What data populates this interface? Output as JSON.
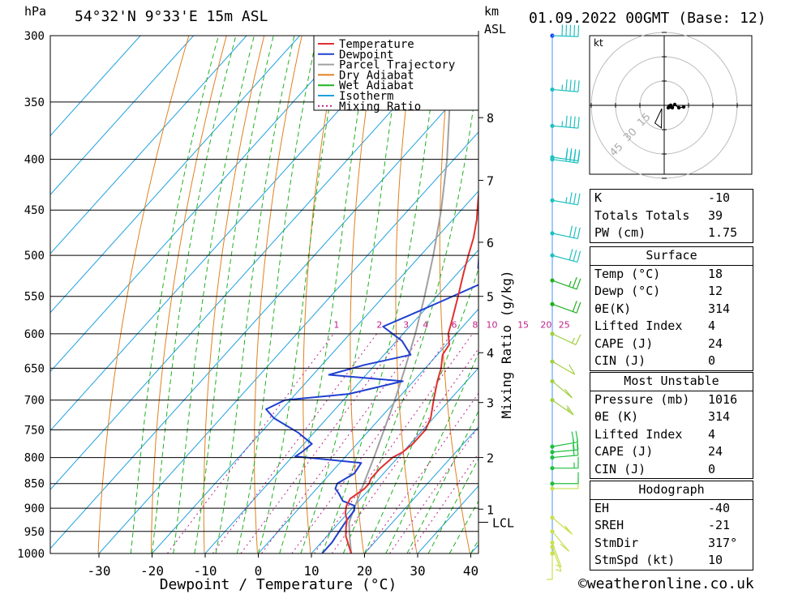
{
  "header": {
    "p_unit": "hPa",
    "location": "54°32'N  9°33'E  15m  ASL",
    "km_label": "km",
    "asl_label": "ASL",
    "datetime": "01.09.2022  00GMT  (Base: 12)"
  },
  "chart_data": {
    "type": "line",
    "xlabel": "Dewpoint / Temperature (°C)",
    "ylabel": "hPa",
    "right_axis_label": "Mixing Ratio (g/kg)",
    "x_ticks": [
      -30,
      -20,
      -10,
      0,
      10,
      20,
      30,
      40
    ],
    "pressure_levels": [
      300,
      350,
      400,
      450,
      500,
      550,
      600,
      650,
      700,
      750,
      800,
      850,
      900,
      950,
      1000
    ],
    "km_ticks": [
      {
        "label": "8",
        "p": 363
      },
      {
        "label": "7",
        "p": 420
      },
      {
        "label": "6",
        "p": 485
      },
      {
        "label": "5",
        "p": 550
      },
      {
        "label": "4",
        "p": 627
      },
      {
        "label": "3",
        "p": 704
      },
      {
        "label": "2",
        "p": 800
      },
      {
        "label": "1",
        "p": 902
      }
    ],
    "lcl": {
      "label": "LCL",
      "p": 930
    },
    "mixing_ratio_labels": [
      "1",
      "2",
      "3",
      "4",
      "6",
      "8",
      "10",
      "15",
      "20",
      "25"
    ],
    "legend": [
      "Temperature",
      "Dewpoint",
      "Parcel Trajectory",
      "Dry Adiabat",
      "Wet Adiabat",
      "Isotherm",
      "Mixing Ratio"
    ],
    "colors": {
      "temperature": "#e03030",
      "dewpoint": "#2040d0",
      "parcel": "#a0a0a0",
      "dry": "#e08020",
      "wet": "#20b020",
      "isotherm": "#20a0e0",
      "mixing": "#c0208a"
    },
    "series": [
      {
        "name": "Temperature",
        "points": [
          [
            1000,
            17.5
          ],
          [
            980,
            15.5
          ],
          [
            960,
            13.5
          ],
          [
            940,
            12
          ],
          [
            925,
            11
          ],
          [
            910,
            9.5
          ],
          [
            895,
            8.5
          ],
          [
            880,
            8
          ],
          [
            860,
            9
          ],
          [
            850,
            9
          ],
          [
            840,
            8.5
          ],
          [
            820,
            8.5
          ],
          [
            800,
            9
          ],
          [
            790,
            10
          ],
          [
            775,
            10.5
          ],
          [
            750,
            10.5
          ],
          [
            730,
            9.5
          ],
          [
            700,
            7
          ],
          [
            670,
            4.5
          ],
          [
            650,
            3
          ],
          [
            630,
            1
          ],
          [
            615,
            0.5
          ],
          [
            600,
            -1.5
          ],
          [
            580,
            -3.2
          ],
          [
            550,
            -6
          ],
          [
            520,
            -9
          ],
          [
            500,
            -11
          ],
          [
            480,
            -13
          ],
          [
            460,
            -15.5
          ],
          [
            450,
            -17
          ],
          [
            430,
            -20
          ],
          [
            400,
            -24
          ],
          [
            380,
            -27
          ],
          [
            360,
            -30.5
          ],
          [
            340,
            -34
          ],
          [
            320,
            -38
          ],
          [
            300,
            -43
          ]
        ]
      },
      {
        "name": "Dewpoint",
        "points": [
          [
            1000,
            12
          ],
          [
            975,
            12
          ],
          [
            950,
            11.5
          ],
          [
            925,
            11
          ],
          [
            905,
            10.8
          ],
          [
            895,
            10
          ],
          [
            885,
            7
          ],
          [
            870,
            5
          ],
          [
            860,
            3.5
          ],
          [
            850,
            3
          ],
          [
            830,
            4.5
          ],
          [
            810,
            4
          ],
          [
            798,
            -9.5
          ],
          [
            790,
            -9
          ],
          [
            775,
            -8.5
          ],
          [
            755,
            -13
          ],
          [
            730,
            -20
          ],
          [
            715,
            -23
          ],
          [
            700,
            -21
          ],
          [
            690,
            -10
          ],
          [
            670,
            -2
          ],
          [
            660,
            -17
          ],
          [
            645,
            -12
          ],
          [
            630,
            -5
          ],
          [
            610,
            -9
          ],
          [
            590,
            -15
          ],
          [
            575,
            -12
          ],
          [
            555,
            -8
          ],
          [
            530,
            -3
          ],
          [
            515,
            -7
          ],
          [
            500,
            -9
          ],
          [
            490,
            -9.5
          ],
          [
            485,
            -3
          ],
          [
            472,
            -6
          ],
          [
            465,
            -3
          ],
          [
            460,
            3
          ],
          [
            450,
            3.5
          ],
          [
            430,
            -2.5
          ],
          [
            400,
            -6.5
          ],
          [
            380,
            -10
          ],
          [
            360,
            -13.5
          ],
          [
            345,
            -17
          ],
          [
            330,
            -20.5
          ],
          [
            320,
            -25
          ],
          [
            310,
            -29
          ],
          [
            300,
            -32
          ]
        ]
      },
      {
        "name": "Parcel Trajectory",
        "points": [
          [
            1000,
            17.5
          ],
          [
            960,
            14.2
          ],
          [
            930,
            11.8
          ],
          [
            900,
            10.4
          ],
          [
            850,
            8
          ],
          [
            800,
            5.5
          ],
          [
            750,
            2.7
          ],
          [
            700,
            -0.3
          ],
          [
            650,
            -3.8
          ],
          [
            600,
            -7.7
          ],
          [
            550,
            -12.3
          ],
          [
            500,
            -17.6
          ],
          [
            450,
            -23.8
          ],
          [
            400,
            -31.3
          ],
          [
            350,
            -40.5
          ],
          [
            310,
            -48.5
          ]
        ]
      }
    ],
    "hodograph": {
      "unit_label": "kt",
      "ring_labels": [
        "15",
        "30",
        "45"
      ],
      "points": [
        [
          5,
          3
        ],
        [
          6,
          1
        ],
        [
          7,
          2
        ],
        [
          8,
          0
        ],
        [
          10,
          3
        ],
        [
          13,
          -1
        ],
        [
          18,
          3
        ],
        [
          24,
          2
        ]
      ],
      "storm_motion": {
        "dir_deg": 317,
        "speed_kt": 10
      }
    },
    "wind_profile": [
      {
        "p": 1000,
        "dir": 180,
        "spd": 5
      },
      {
        "p": 985,
        "dir": 200,
        "spd": 5
      },
      {
        "p": 975,
        "dir": 200,
        "spd": 5
      },
      {
        "p": 950,
        "dir": 220,
        "spd": 10
      },
      {
        "p": 920,
        "dir": 230,
        "spd": 15
      },
      {
        "p": 860,
        "dir": 270,
        "spd": 10
      },
      {
        "p": 850,
        "dir": 270,
        "spd": 10
      },
      {
        "p": 820,
        "dir": 270,
        "spd": 15
      },
      {
        "p": 800,
        "dir": 275,
        "spd": 20
      },
      {
        "p": 790,
        "dir": 275,
        "spd": 20
      },
      {
        "p": 780,
        "dir": 280,
        "spd": 20
      },
      {
        "p": 700,
        "dir": 235,
        "spd": 15
      },
      {
        "p": 670,
        "dir": 230,
        "spd": 10
      },
      {
        "p": 640,
        "dir": 240,
        "spd": 10
      },
      {
        "p": 600,
        "dir": 245,
        "spd": 15
      },
      {
        "p": 560,
        "dir": 250,
        "spd": 20
      },
      {
        "p": 530,
        "dir": 250,
        "spd": 25
      },
      {
        "p": 500,
        "dir": 255,
        "spd": 30
      },
      {
        "p": 475,
        "dir": 258,
        "spd": 30
      },
      {
        "p": 440,
        "dir": 260,
        "spd": 35
      },
      {
        "p": 400,
        "dir": 262,
        "spd": 40
      },
      {
        "p": 398,
        "dir": 262,
        "spd": 40
      },
      {
        "p": 370,
        "dir": 265,
        "spd": 45
      },
      {
        "p": 340,
        "dir": 265,
        "spd": 45
      },
      {
        "p": 300,
        "dir": 268,
        "spd": 50
      }
    ]
  },
  "indices": [
    {
      "label": "K",
      "value": "-10"
    },
    {
      "label": "Totals Totals",
      "value": "39"
    },
    {
      "label": "PW (cm)",
      "value": "1.75"
    }
  ],
  "surface": {
    "title": "Surface",
    "rows": [
      {
        "label": "Temp (°C)",
        "value": "18"
      },
      {
        "label": "Dewp (°C)",
        "value": "12"
      },
      {
        "label": "θE(K)",
        "value": "314"
      },
      {
        "label": "Lifted Index",
        "value": "4"
      },
      {
        "label": "CAPE (J)",
        "value": "24"
      },
      {
        "label": "CIN (J)",
        "value": "0"
      }
    ]
  },
  "most_unstable": {
    "title": "Most Unstable",
    "rows": [
      {
        "label": "Pressure (mb)",
        "value": "1016"
      },
      {
        "label": "θE (K)",
        "value": "314"
      },
      {
        "label": "Lifted Index",
        "value": "4"
      },
      {
        "label": "CAPE (J)",
        "value": "24"
      },
      {
        "label": "CIN (J)",
        "value": "0"
      }
    ]
  },
  "hodograph_stats": {
    "title": "Hodograph",
    "rows": [
      {
        "label": "EH",
        "value": "-40"
      },
      {
        "label": "SREH",
        "value": "-21"
      },
      {
        "label": "StmDir",
        "value": "317°"
      },
      {
        "label": "StmSpd (kt)",
        "value": "10"
      }
    ]
  },
  "footer": "©weatheronline.co.uk"
}
